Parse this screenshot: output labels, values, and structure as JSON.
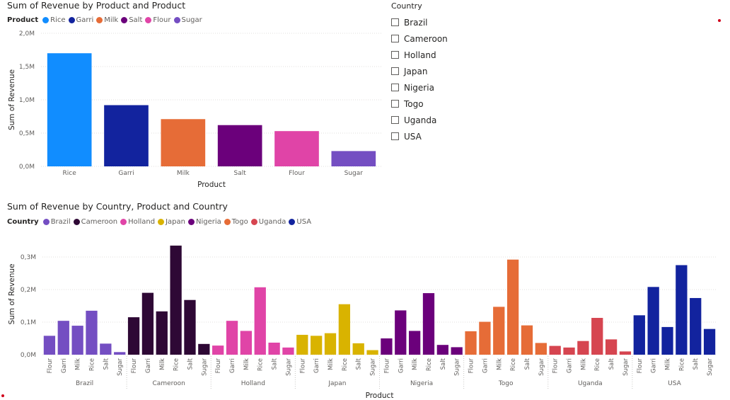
{
  "chart1": {
    "title": "Sum of Revenue by Product and Product",
    "legend_title": "Product",
    "ylabel": "Sum of Revenue",
    "xlabel": "Product"
  },
  "chart2": {
    "title": "Sum of Revenue by Country, Product and Country",
    "legend_title": "Country",
    "ylabel": "Sum of Revenue",
    "xlabel": "Product"
  },
  "slicer": {
    "title": "Country",
    "items": [
      "Brazil",
      "Cameroon",
      "Holland",
      "Japan",
      "Nigeria",
      "Togo",
      "Uganda",
      "USA"
    ]
  },
  "chart_data": [
    {
      "type": "bar",
      "title": "Sum of Revenue by Product and Product",
      "xlabel": "Product",
      "ylabel": "Sum of Revenue",
      "categories": [
        "Rice",
        "Garri",
        "Milk",
        "Salt",
        "Flour",
        "Sugar"
      ],
      "values": [
        1.7,
        0.92,
        0.71,
        0.62,
        0.53,
        0.23
      ],
      "unit": "M",
      "ylim": [
        0,
        2.0
      ],
      "yticks": [
        "0,0M",
        "0,5M",
        "1,0M",
        "1,5M",
        "2,0M"
      ],
      "colors": [
        "#118DFF",
        "#12239E",
        "#E66C37",
        "#6B007B",
        "#E044A7",
        "#744EC2"
      ],
      "legend": [
        "Rice",
        "Garri",
        "Milk",
        "Salt",
        "Flour",
        "Sugar"
      ],
      "legend_position": "top-left",
      "grid": true
    },
    {
      "type": "bar",
      "title": "Sum of Revenue by Country, Product and Country",
      "xlabel": "Product",
      "ylabel": "Sum of Revenue",
      "unit": "M",
      "ylim": [
        0,
        0.35
      ],
      "yticks": [
        "0,0M",
        "0,1M",
        "0,2M",
        "0,3M"
      ],
      "subcategories": [
        "Flour",
        "Garri",
        "Milk",
        "Rice",
        "Salt",
        "Sugar"
      ],
      "legend_position": "top-left",
      "grid": true,
      "series": [
        {
          "name": "Brazil",
          "color": "#744EC2",
          "values": [
            0.058,
            0.104,
            0.089,
            0.135,
            0.034,
            0.008
          ]
        },
        {
          "name": "Cameroon",
          "color": "#2E0835",
          "values": [
            0.115,
            0.19,
            0.133,
            0.335,
            0.168,
            0.033
          ]
        },
        {
          "name": "Holland",
          "color": "#E044A7",
          "values": [
            0.028,
            0.104,
            0.073,
            0.207,
            0.037,
            0.022
          ]
        },
        {
          "name": "Japan",
          "color": "#D9B300",
          "values": [
            0.061,
            0.058,
            0.066,
            0.155,
            0.035,
            0.014
          ]
        },
        {
          "name": "Nigeria",
          "color": "#6B007B",
          "values": [
            0.05,
            0.136,
            0.073,
            0.189,
            0.03,
            0.023
          ]
        },
        {
          "name": "Togo",
          "color": "#E66C37",
          "values": [
            0.072,
            0.101,
            0.147,
            0.292,
            0.09,
            0.036
          ]
        },
        {
          "name": "Uganda",
          "color": "#D64550",
          "values": [
            0.027,
            0.022,
            0.042,
            0.113,
            0.047,
            0.01
          ]
        },
        {
          "name": "USA",
          "color": "#12239E",
          "values": [
            0.121,
            0.208,
            0.085,
            0.275,
            0.174,
            0.079
          ]
        }
      ]
    }
  ]
}
